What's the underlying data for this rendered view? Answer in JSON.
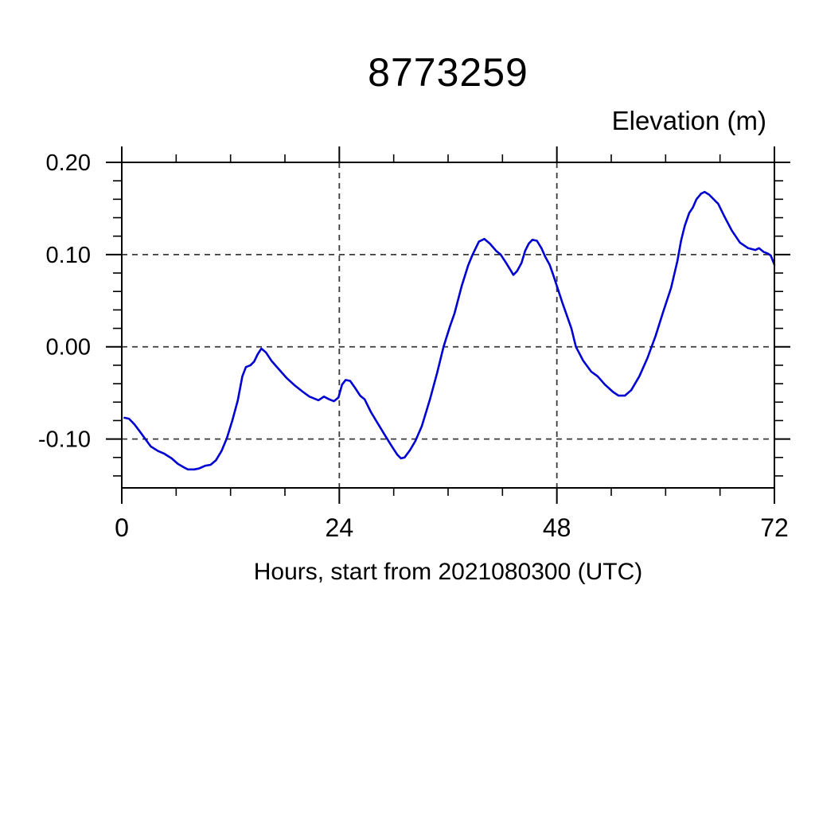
{
  "figure": {
    "title": "8773259",
    "right_axis_label": "Elevation (m)",
    "x_axis_label": "Hours, start from 2021080300 (UTC)"
  },
  "colors": {
    "line": "#0000d2",
    "grid": "#3a3a3a",
    "axis": "#000000",
    "background": "#ffffff"
  },
  "chart_data": {
    "type": "line",
    "title": "8773259",
    "xlabel": "Hours, start from 2021080300 (UTC)",
    "ylabel": "Elevation (m)",
    "xlim": [
      0,
      72
    ],
    "ylim": [
      -0.153,
      0.2
    ],
    "x_major_ticks": [
      0,
      24,
      48,
      72
    ],
    "x_tick_labels": [
      "0",
      "24",
      "48",
      "72"
    ],
    "x_minor_step": 6,
    "y_major_ticks": [
      0.2,
      0.1,
      0.0,
      -0.1
    ],
    "y_tick_labels": [
      "0.20",
      "0.10",
      "0.00",
      "-0.10"
    ],
    "y_minor_step": 0.02,
    "grid": {
      "x_dashed": [
        24,
        48
      ],
      "y_dashed": [
        0.2,
        0.1,
        0.0,
        -0.1
      ],
      "style": "dashed"
    },
    "legend_position": "none",
    "series": [
      {
        "name": "elevation",
        "color": "#0000d2",
        "points": [
          [
            0.3,
            -0.077
          ],
          [
            0.8,
            -0.078
          ],
          [
            1.4,
            -0.084
          ],
          [
            2.0,
            -0.092
          ],
          [
            2.6,
            -0.1
          ],
          [
            3.2,
            -0.108
          ],
          [
            4.0,
            -0.113
          ],
          [
            4.7,
            -0.116
          ],
          [
            5.5,
            -0.121
          ],
          [
            6.2,
            -0.127
          ],
          [
            6.9,
            -0.131
          ],
          [
            7.3,
            -0.133
          ],
          [
            8.0,
            -0.133
          ],
          [
            8.5,
            -0.132
          ],
          [
            9.2,
            -0.129
          ],
          [
            9.8,
            -0.128
          ],
          [
            10.4,
            -0.123
          ],
          [
            11.0,
            -0.113
          ],
          [
            11.6,
            -0.099
          ],
          [
            12.2,
            -0.08
          ],
          [
            12.8,
            -0.058
          ],
          [
            13.3,
            -0.032
          ],
          [
            13.7,
            -0.022
          ],
          [
            14.2,
            -0.02
          ],
          [
            14.6,
            -0.016
          ],
          [
            15.0,
            -0.008
          ],
          [
            15.4,
            -0.002
          ],
          [
            15.9,
            -0.006
          ],
          [
            16.5,
            -0.015
          ],
          [
            17.3,
            -0.024
          ],
          [
            18.2,
            -0.034
          ],
          [
            19.1,
            -0.042
          ],
          [
            20.0,
            -0.049
          ],
          [
            20.7,
            -0.054
          ],
          [
            21.2,
            -0.056
          ],
          [
            21.7,
            -0.058
          ],
          [
            22.3,
            -0.054
          ],
          [
            22.9,
            -0.057
          ],
          [
            23.4,
            -0.059
          ],
          [
            23.9,
            -0.055
          ],
          [
            24.3,
            -0.041
          ],
          [
            24.7,
            -0.036
          ],
          [
            25.2,
            -0.037
          ],
          [
            25.7,
            -0.044
          ],
          [
            26.3,
            -0.053
          ],
          [
            26.8,
            -0.057
          ],
          [
            27.5,
            -0.071
          ],
          [
            28.3,
            -0.084
          ],
          [
            29.1,
            -0.097
          ],
          [
            29.8,
            -0.108
          ],
          [
            30.4,
            -0.117
          ],
          [
            30.8,
            -0.121
          ],
          [
            31.2,
            -0.12
          ],
          [
            31.8,
            -0.112
          ],
          [
            32.4,
            -0.102
          ],
          [
            33.1,
            -0.086
          ],
          [
            34.0,
            -0.057
          ],
          [
            34.8,
            -0.028
          ],
          [
            35.5,
            0.0
          ],
          [
            36.2,
            0.022
          ],
          [
            36.7,
            0.036
          ],
          [
            37.5,
            0.066
          ],
          [
            38.2,
            0.088
          ],
          [
            38.7,
            0.1
          ],
          [
            39.4,
            0.114
          ],
          [
            40.0,
            0.117
          ],
          [
            40.6,
            0.112
          ],
          [
            41.3,
            0.104
          ],
          [
            41.8,
            0.1
          ],
          [
            42.4,
            0.091
          ],
          [
            42.9,
            0.083
          ],
          [
            43.2,
            0.078
          ],
          [
            43.6,
            0.082
          ],
          [
            44.1,
            0.091
          ],
          [
            44.5,
            0.104
          ],
          [
            44.9,
            0.112
          ],
          [
            45.3,
            0.116
          ],
          [
            45.8,
            0.115
          ],
          [
            46.3,
            0.107
          ],
          [
            46.7,
            0.098
          ],
          [
            47.2,
            0.089
          ],
          [
            47.6,
            0.078
          ],
          [
            48.1,
            0.063
          ],
          [
            48.6,
            0.048
          ],
          [
            49.1,
            0.034
          ],
          [
            49.6,
            0.02
          ],
          [
            50.1,
            0.0
          ],
          [
            50.9,
            -0.015
          ],
          [
            51.8,
            -0.027
          ],
          [
            52.5,
            -0.032
          ],
          [
            53.3,
            -0.041
          ],
          [
            54.2,
            -0.049
          ],
          [
            54.8,
            -0.053
          ],
          [
            55.5,
            -0.053
          ],
          [
            56.2,
            -0.047
          ],
          [
            57.1,
            -0.032
          ],
          [
            58.0,
            -0.012
          ],
          [
            58.9,
            0.012
          ],
          [
            59.7,
            0.037
          ],
          [
            60.6,
            0.064
          ],
          [
            61.3,
            0.093
          ],
          [
            61.7,
            0.115
          ],
          [
            62.1,
            0.131
          ],
          [
            62.6,
            0.145
          ],
          [
            63.0,
            0.151
          ],
          [
            63.4,
            0.16
          ],
          [
            63.9,
            0.166
          ],
          [
            64.3,
            0.168
          ],
          [
            64.8,
            0.165
          ],
          [
            65.4,
            0.159
          ],
          [
            65.8,
            0.155
          ],
          [
            66.5,
            0.141
          ],
          [
            67.3,
            0.126
          ],
          [
            68.2,
            0.113
          ],
          [
            69.1,
            0.107
          ],
          [
            69.9,
            0.105
          ],
          [
            70.3,
            0.107
          ],
          [
            70.8,
            0.103
          ],
          [
            71.3,
            0.101
          ],
          [
            71.6,
            0.099
          ],
          [
            72.0,
            0.089
          ]
        ]
      }
    ]
  }
}
